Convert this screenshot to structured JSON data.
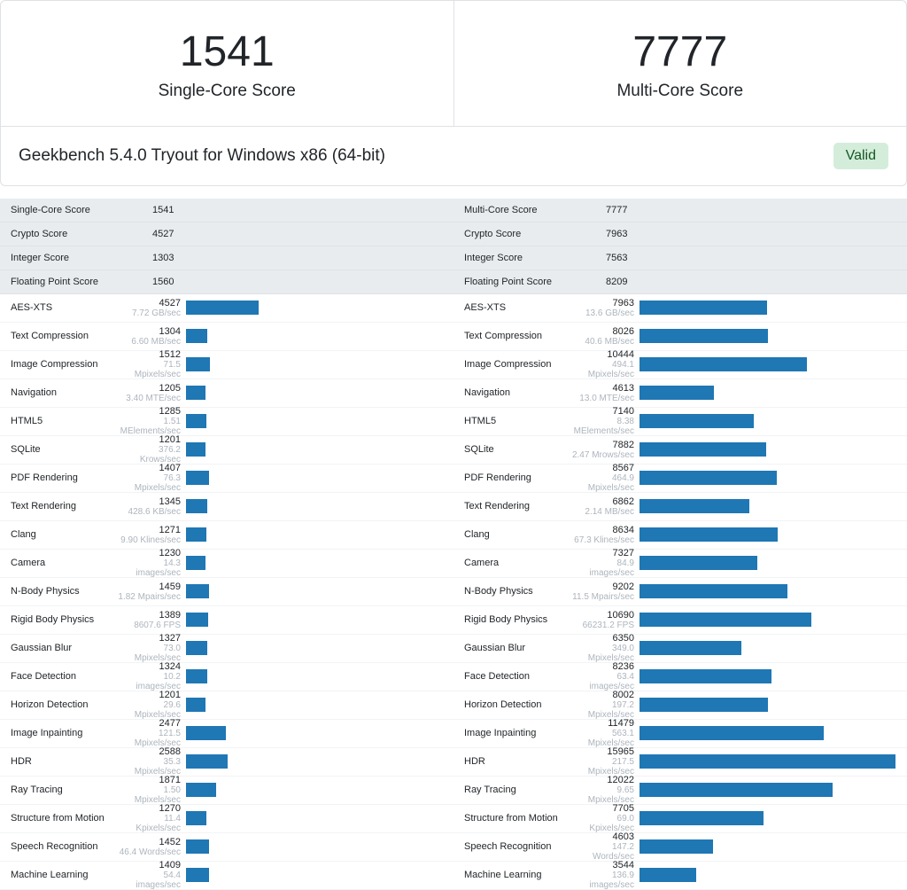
{
  "header": {
    "single_core": {
      "value": "1541",
      "label": "Single-Core Score"
    },
    "multi_core": {
      "value": "7777",
      "label": "Multi-Core Score"
    }
  },
  "version_bar": {
    "text": "Geekbench 5.4.0 Tryout for Windows x86 (64-bit)",
    "badge": "Valid"
  },
  "colors": {
    "bar": "#1f77b4",
    "summary_bg": "#e9ecef",
    "border": "#dee2e6",
    "detail_text": "#adb5bd",
    "badge_bg": "#d4edda",
    "badge_text": "#155724"
  },
  "bar_max": 16000,
  "single": {
    "summary": [
      {
        "label": "Single-Core Score",
        "value": "1541"
      },
      {
        "label": "Crypto Score",
        "value": "4527"
      },
      {
        "label": "Integer Score",
        "value": "1303"
      },
      {
        "label": "Floating Point Score",
        "value": "1560"
      }
    ],
    "benchmarks": [
      {
        "name": "AES-XTS",
        "score": "4527",
        "detail": "7.72 GB/sec",
        "bar": 4527
      },
      {
        "name": "Text Compression",
        "score": "1304",
        "detail": "6.60 MB/sec",
        "bar": 1304
      },
      {
        "name": "Image Compression",
        "score": "1512",
        "detail": "71.5 Mpixels/sec",
        "bar": 1512
      },
      {
        "name": "Navigation",
        "score": "1205",
        "detail": "3.40 MTE/sec",
        "bar": 1205
      },
      {
        "name": "HTML5",
        "score": "1285",
        "detail": "1.51 MElements/sec",
        "bar": 1285
      },
      {
        "name": "SQLite",
        "score": "1201",
        "detail": "376.2 Krows/sec",
        "bar": 1201
      },
      {
        "name": "PDF Rendering",
        "score": "1407",
        "detail": "76.3 Mpixels/sec",
        "bar": 1407
      },
      {
        "name": "Text Rendering",
        "score": "1345",
        "detail": "428.6 KB/sec",
        "bar": 1345
      },
      {
        "name": "Clang",
        "score": "1271",
        "detail": "9.90 Klines/sec",
        "bar": 1271
      },
      {
        "name": "Camera",
        "score": "1230",
        "detail": "14.3 images/sec",
        "bar": 1230
      },
      {
        "name": "N-Body Physics",
        "score": "1459",
        "detail": "1.82 Mpairs/sec",
        "bar": 1459
      },
      {
        "name": "Rigid Body Physics",
        "score": "1389",
        "detail": "8607.6 FPS",
        "bar": 1389
      },
      {
        "name": "Gaussian Blur",
        "score": "1327",
        "detail": "73.0 Mpixels/sec",
        "bar": 1327
      },
      {
        "name": "Face Detection",
        "score": "1324",
        "detail": "10.2 images/sec",
        "bar": 1324
      },
      {
        "name": "Horizon Detection",
        "score": "1201",
        "detail": "29.6 Mpixels/sec",
        "bar": 1201
      },
      {
        "name": "Image Inpainting",
        "score": "2477",
        "detail": "121.5 Mpixels/sec",
        "bar": 2477
      },
      {
        "name": "HDR",
        "score": "2588",
        "detail": "35.3 Mpixels/sec",
        "bar": 2588
      },
      {
        "name": "Ray Tracing",
        "score": "1871",
        "detail": "1.50 Mpixels/sec",
        "bar": 1871
      },
      {
        "name": "Structure from Motion",
        "score": "1270",
        "detail": "11.4 Kpixels/sec",
        "bar": 1270
      },
      {
        "name": "Speech Recognition",
        "score": "1452",
        "detail": "46.4 Words/sec",
        "bar": 1452
      },
      {
        "name": "Machine Learning",
        "score": "1409",
        "detail": "54.4 images/sec",
        "bar": 1409
      }
    ]
  },
  "multi": {
    "summary": [
      {
        "label": "Multi-Core Score",
        "value": "7777"
      },
      {
        "label": "Crypto Score",
        "value": "7963"
      },
      {
        "label": "Integer Score",
        "value": "7563"
      },
      {
        "label": "Floating Point Score",
        "value": "8209"
      }
    ],
    "benchmarks": [
      {
        "name": "AES-XTS",
        "score": "7963",
        "detail": "13.6 GB/sec",
        "bar": 7963
      },
      {
        "name": "Text Compression",
        "score": "8026",
        "detail": "40.6 MB/sec",
        "bar": 8026
      },
      {
        "name": "Image Compression",
        "score": "10444",
        "detail": "494.1 Mpixels/sec",
        "bar": 10444
      },
      {
        "name": "Navigation",
        "score": "4613",
        "detail": "13.0 MTE/sec",
        "bar": 4613
      },
      {
        "name": "HTML5",
        "score": "7140",
        "detail": "8.38 MElements/sec",
        "bar": 7140
      },
      {
        "name": "SQLite",
        "score": "7882",
        "detail": "2.47 Mrows/sec",
        "bar": 7882
      },
      {
        "name": "PDF Rendering",
        "score": "8567",
        "detail": "464.9 Mpixels/sec",
        "bar": 8567
      },
      {
        "name": "Text Rendering",
        "score": "6862",
        "detail": "2.14 MB/sec",
        "bar": 6862
      },
      {
        "name": "Clang",
        "score": "8634",
        "detail": "67.3 Klines/sec",
        "bar": 8634
      },
      {
        "name": "Camera",
        "score": "7327",
        "detail": "84.9 images/sec",
        "bar": 7327
      },
      {
        "name": "N-Body Physics",
        "score": "9202",
        "detail": "11.5 Mpairs/sec",
        "bar": 9202
      },
      {
        "name": "Rigid Body Physics",
        "score": "10690",
        "detail": "66231.2 FPS",
        "bar": 10690
      },
      {
        "name": "Gaussian Blur",
        "score": "6350",
        "detail": "349.0 Mpixels/sec",
        "bar": 6350
      },
      {
        "name": "Face Detection",
        "score": "8236",
        "detail": "63.4 images/sec",
        "bar": 8236
      },
      {
        "name": "Horizon Detection",
        "score": "8002",
        "detail": "197.2 Mpixels/sec",
        "bar": 8002
      },
      {
        "name": "Image Inpainting",
        "score": "11479",
        "detail": "563.1 Mpixels/sec",
        "bar": 11479
      },
      {
        "name": "HDR",
        "score": "15965",
        "detail": "217.5 Mpixels/sec",
        "bar": 15965
      },
      {
        "name": "Ray Tracing",
        "score": "12022",
        "detail": "9.65 Mpixels/sec",
        "bar": 12022
      },
      {
        "name": "Structure from Motion",
        "score": "7705",
        "detail": "69.0 Kpixels/sec",
        "bar": 7705
      },
      {
        "name": "Speech Recognition",
        "score": "4603",
        "detail": "147.2 Words/sec",
        "bar": 4603
      },
      {
        "name": "Machine Learning",
        "score": "3544",
        "detail": "136.9 images/sec",
        "bar": 3544
      }
    ]
  }
}
